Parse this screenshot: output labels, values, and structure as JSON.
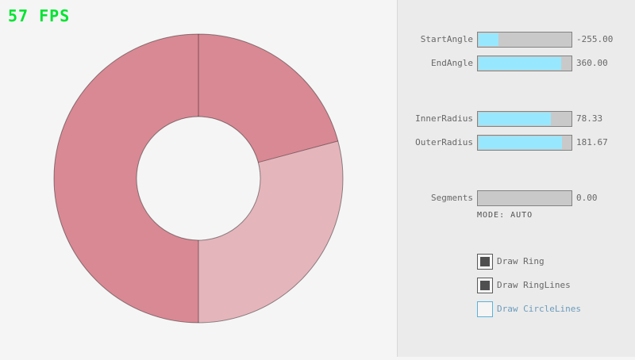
{
  "fps": {
    "text": "57 FPS"
  },
  "panel": {
    "sliders": [
      {
        "label": "StartAngle",
        "value": "-255.00",
        "fraction": 0.2167
      },
      {
        "label": "EndAngle",
        "value": "360.00",
        "fraction": 0.9
      },
      {
        "label": "InnerRadius",
        "value": "78.33",
        "fraction": 0.7833
      },
      {
        "label": "OuterRadius",
        "value": "181.67",
        "fraction": 0.9083
      },
      {
        "label": "Segments",
        "value": "0.00",
        "fraction": 0.0
      }
    ],
    "mode_text": "MODE: AUTO",
    "checkboxes": [
      {
        "label": "Draw Ring",
        "checked": true,
        "focused": false
      },
      {
        "label": "Draw RingLines",
        "checked": true,
        "focused": false
      },
      {
        "label": "Draw CircleLines",
        "checked": false,
        "focused": true
      }
    ]
  },
  "colors": {
    "bg": "#f5f5f5",
    "panel_bg": "#ebebeb",
    "panel_divider": "#d8d8d8",
    "fps_green": "#00e430",
    "text_gray": "#686868",
    "text_dark": "#505050",
    "ring_dark": "#d98994",
    "ring_light": "#e5b5bc",
    "ring_line": "rgba(0,0,0,0.42)",
    "slider_fill": "#97e8ff",
    "slider_track": "#c9c9c9",
    "border_gray": "#838383",
    "check_fill": "#4f4f4f",
    "focus_border": "#5bb2d9",
    "focus_text": "#6c9bbc"
  }
}
